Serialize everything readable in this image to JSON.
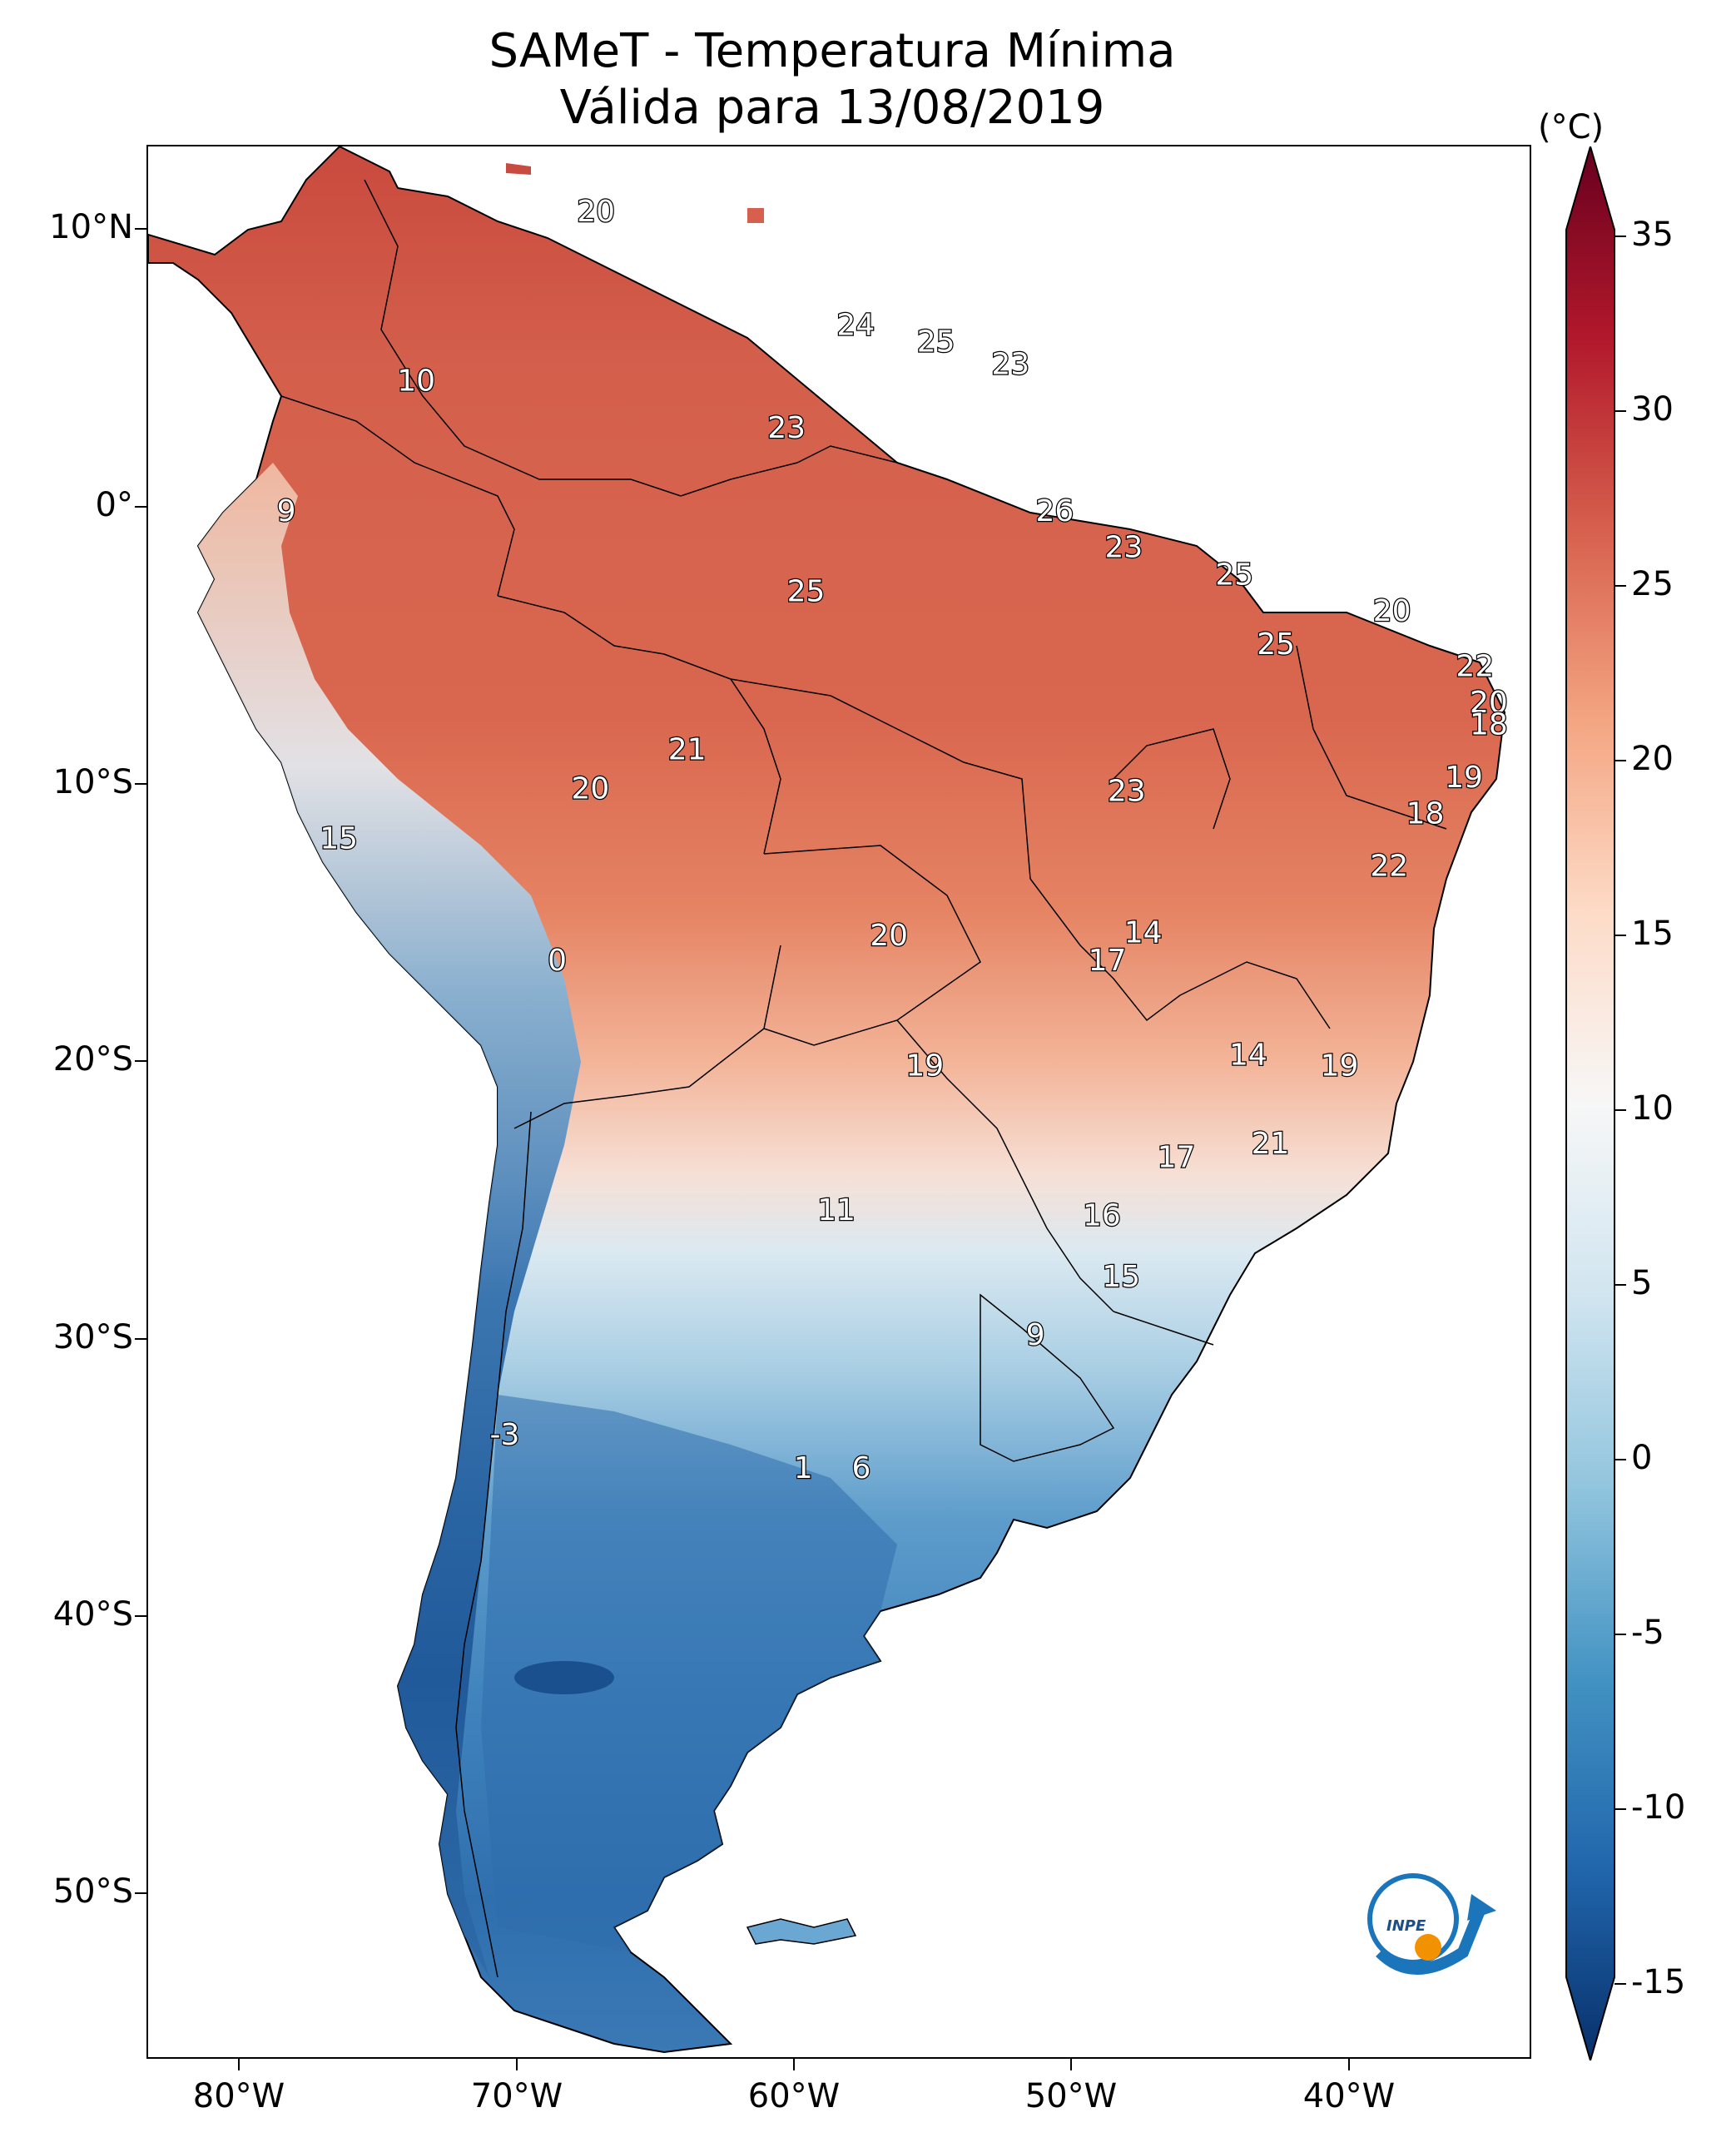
{
  "title": {
    "line1": "SAMeT - Temperatura Mínima",
    "line2": "Válida para 13/08/2019"
  },
  "colorbar": {
    "unit": "(°C)",
    "ticks": [
      "35",
      "30",
      "25",
      "20",
      "15",
      "10",
      "5",
      "0",
      "-5",
      "-10",
      "-15"
    ],
    "range": [
      -15,
      35
    ],
    "colors": [
      "#08306b",
      "#2166ac",
      "#4393c3",
      "#92c5de",
      "#d1e5f0",
      "#f7f7f7",
      "#fddbc7",
      "#f4a582",
      "#d6604d",
      "#b2182b",
      "#67001f"
    ]
  },
  "axes": {
    "lat_labels": [
      "10°N",
      "0°",
      "10°S",
      "20°S",
      "30°S",
      "40°S",
      "50°S"
    ],
    "lon_labels": [
      "80°W",
      "70°W",
      "60°W",
      "50°W",
      "40°W"
    ]
  },
  "map_values": [
    {
      "label": "20",
      "lon": -67.2,
      "lat": 10.6
    },
    {
      "label": "24",
      "lon": -57.8,
      "lat": 6.5
    },
    {
      "label": "25",
      "lon": -54.9,
      "lat": 5.9
    },
    {
      "label": "23",
      "lon": -52.2,
      "lat": 5.1
    },
    {
      "label": "10",
      "lon": -73.7,
      "lat": 4.5
    },
    {
      "label": "23",
      "lon": -60.3,
      "lat": 2.8
    },
    {
      "label": "9",
      "lon": -78.4,
      "lat": -0.2
    },
    {
      "label": "26",
      "lon": -50.6,
      "lat": -0.2
    },
    {
      "label": "23",
      "lon": -48.1,
      "lat": -1.5
    },
    {
      "label": "25",
      "lon": -59.6,
      "lat": -3.1
    },
    {
      "label": "25",
      "lon": -44.1,
      "lat": -2.5
    },
    {
      "label": "20",
      "lon": -38.4,
      "lat": -3.8
    },
    {
      "label": "25",
      "lon": -42.6,
      "lat": -5.0
    },
    {
      "label": "22",
      "lon": -35.4,
      "lat": -5.8
    },
    {
      "label": "20",
      "lon": -34.9,
      "lat": -7.1
    },
    {
      "label": "18",
      "lon": -34.9,
      "lat": -7.9
    },
    {
      "label": "21",
      "lon": -63.9,
      "lat": -8.8
    },
    {
      "label": "20",
      "lon": -67.4,
      "lat": -10.2
    },
    {
      "label": "23",
      "lon": -48.0,
      "lat": -10.3
    },
    {
      "label": "19",
      "lon": -35.8,
      "lat": -9.8
    },
    {
      "label": "18",
      "lon": -37.2,
      "lat": -11.1
    },
    {
      "label": "15",
      "lon": -76.5,
      "lat": -12.0
    },
    {
      "label": "22",
      "lon": -38.5,
      "lat": -13.0
    },
    {
      "label": "14",
      "lon": -47.4,
      "lat": -15.4
    },
    {
      "label": "20",
      "lon": -56.6,
      "lat": -15.5
    },
    {
      "label": "0",
      "lon": -68.6,
      "lat": -16.4
    },
    {
      "label": "17",
      "lon": -48.7,
      "lat": -16.4
    },
    {
      "label": "14",
      "lon": -43.6,
      "lat": -19.8
    },
    {
      "label": "19",
      "lon": -55.3,
      "lat": -20.2
    },
    {
      "label": "19",
      "lon": -40.3,
      "lat": -20.2
    },
    {
      "label": "21",
      "lon": -42.8,
      "lat": -23.0
    },
    {
      "label": "17",
      "lon": -46.2,
      "lat": -23.5
    },
    {
      "label": "11",
      "lon": -58.5,
      "lat": -25.4
    },
    {
      "label": "16",
      "lon": -48.9,
      "lat": -25.6
    },
    {
      "label": "15",
      "lon": -48.2,
      "lat": -27.8
    },
    {
      "label": "9",
      "lon": -51.3,
      "lat": -29.9
    },
    {
      "label": "-3",
      "lon": -70.5,
      "lat": -33.5
    },
    {
      "label": "1",
      "lon": -59.7,
      "lat": -34.7
    },
    {
      "label": "6",
      "lon": -57.6,
      "lat": -34.7
    }
  ]
}
